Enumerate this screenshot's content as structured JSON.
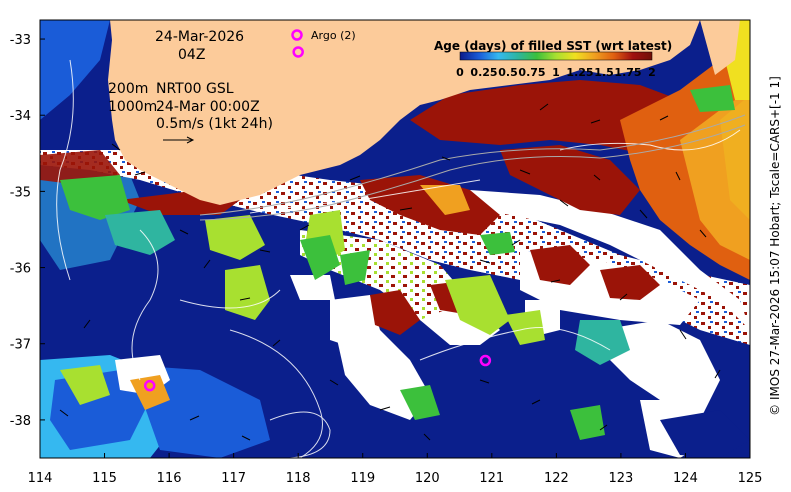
{
  "map": {
    "date_label": "24-Mar-2026",
    "time_label": "04Z",
    "depth_line1": "200m",
    "depth_line2": "1000m",
    "product_line1": "NRT00 GSL",
    "product_line2": "24-Mar 00:00Z",
    "vector_scale_label": "0.5m/s (1kt 24h)",
    "argo_label": "Argo (2)",
    "credit": "© IMOS 27-Mar-2026 15:07 Hobart; Tscale=CARS+[-1 1]"
  },
  "axes": {
    "x_ticks": [
      "114",
      "115",
      "116",
      "117",
      "118",
      "119",
      "120",
      "121",
      "122",
      "123",
      "124",
      "125"
    ],
    "y_ticks": [
      "-33",
      "-34",
      "-35",
      "-36",
      "-37",
      "-38"
    ]
  },
  "colorbar": {
    "title": "Age (days) of filled SST (wrt latest)",
    "tick_labels": [
      "0",
      "0.25",
      "0.5",
      "0.75",
      "1",
      "1.25",
      "1.5",
      "1.75",
      "2"
    ],
    "colors": [
      "#0a1a8a",
      "#1a5cd8",
      "#35b8f0",
      "#2fb5a0",
      "#3cc03c",
      "#a8e030",
      "#f0e020",
      "#f0a020",
      "#e06010",
      "#a01010",
      "#701008"
    ]
  },
  "map_colors": {
    "land": "#fccb9a",
    "cloud": "#ffffff",
    "deep": "#0b1f8c",
    "argo_marker": "#ff00ff"
  },
  "argo_floats": [
    {
      "lon": 118.0,
      "lat": -33.17
    },
    {
      "lon": 120.9,
      "lat": -37.22
    },
    {
      "lon": 115.7,
      "lat": -37.55
    }
  ]
}
